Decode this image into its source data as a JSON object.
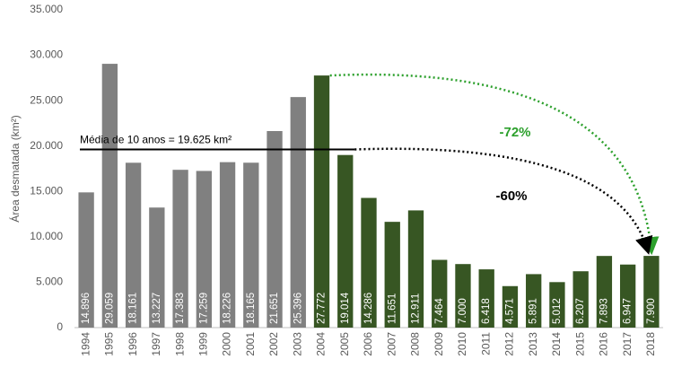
{
  "chart_data": {
    "type": "bar",
    "y_label": "Área desmatada (km²)",
    "categories": [
      "1994",
      "1995",
      "1996",
      "1997",
      "1998",
      "1999",
      "2000",
      "2001",
      "2002",
      "2003",
      "2004",
      "2005",
      "2006",
      "2007",
      "2008",
      "2009",
      "2010",
      "2011",
      "2012",
      "2013",
      "2014",
      "2015",
      "2016",
      "2017",
      "2018"
    ],
    "values": [
      14896,
      29059,
      18161,
      13227,
      17383,
      17259,
      18226,
      18165,
      21651,
      25396,
      27772,
      19014,
      14286,
      11651,
      12911,
      7464,
      7000,
      6418,
      4571,
      5891,
      5012,
      6207,
      7893,
      6947,
      7900
    ],
    "value_labels": [
      "14.896",
      "29.059",
      "18.161",
      "13.227",
      "17.383",
      "17.259",
      "18.226",
      "18.165",
      "21.651",
      "25.396",
      "27.772",
      "19.014",
      "14.286",
      "11.651",
      "12.911",
      "7.464",
      "7.000",
      "6.418",
      "4.571",
      "5.891",
      "5.012",
      "6.207",
      "7.893",
      "6.947",
      "7.900"
    ],
    "colors": [
      "#808080",
      "#808080",
      "#808080",
      "#808080",
      "#808080",
      "#808080",
      "#808080",
      "#808080",
      "#808080",
      "#808080",
      "#375623",
      "#375623",
      "#375623",
      "#375623",
      "#375623",
      "#375623",
      "#375623",
      "#375623",
      "#375623",
      "#375623",
      "#375623",
      "#375623",
      "#375623",
      "#375623",
      "#375623"
    ],
    "ylim": [
      0,
      35000
    ],
    "yticks": [
      {
        "value": 0,
        "label": "0"
      },
      {
        "value": 5000,
        "label": "5.000"
      },
      {
        "value": 10000,
        "label": "10.000"
      },
      {
        "value": 15000,
        "label": "15.000"
      },
      {
        "value": 20000,
        "label": "20.000"
      },
      {
        "value": 25000,
        "label": "25.000"
      },
      {
        "value": 30000,
        "label": "30.000"
      },
      {
        "value": 35000,
        "label": "35.000"
      }
    ],
    "grid": false,
    "mean": {
      "value": 19625,
      "label": "Média de 10 anos = 19.625 km²"
    },
    "arrows": [
      {
        "label": "-72%",
        "color": "#2ca02c"
      },
      {
        "label": "-60%",
        "color": "#000000"
      }
    ]
  }
}
